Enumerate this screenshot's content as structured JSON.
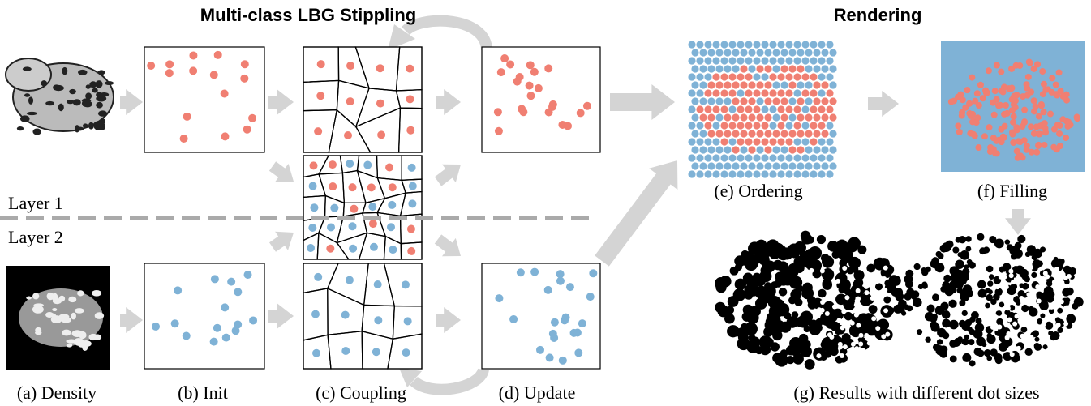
{
  "titles": {
    "stippling": "Multi-class LBG Stippling",
    "rendering": "Rendering"
  },
  "layers": [
    "Layer 1",
    "Layer 2"
  ],
  "captions": {
    "a": "(a) Density",
    "b": "(b) Init",
    "c": "(c) Coupling",
    "d": "(d) Update",
    "e": "(e) Ordering",
    "f": "(f) Filling",
    "g": "(g) Results with different dot sizes"
  }
}
